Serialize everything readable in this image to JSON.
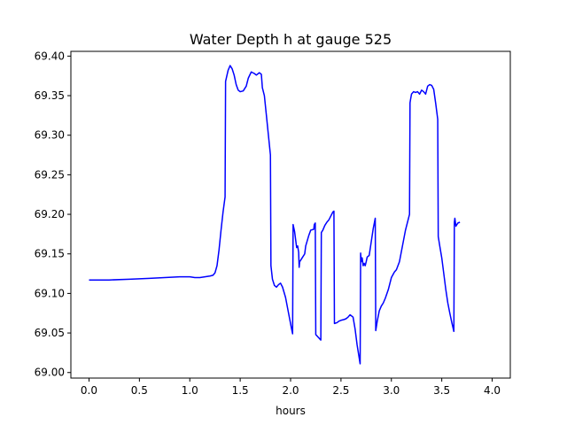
{
  "chart_data": {
    "type": "line",
    "title": "Water Depth h at gauge 525",
    "xlabel": "hours",
    "ylabel": "",
    "xlim": [
      -0.18,
      4.18
    ],
    "ylim": [
      68.993,
      69.406
    ],
    "x_ticks": [
      0.0,
      0.5,
      1.0,
      1.5,
      2.0,
      2.5,
      3.0,
      3.5,
      4.0
    ],
    "x_tick_labels": [
      "0.0",
      "0.5",
      "1.0",
      "1.5",
      "2.0",
      "2.5",
      "3.0",
      "3.5",
      "4.0"
    ],
    "y_ticks": [
      69.0,
      69.05,
      69.1,
      69.15,
      69.2,
      69.25,
      69.3,
      69.35,
      69.4
    ],
    "y_tick_labels": [
      "69.00",
      "69.05",
      "69.10",
      "69.15",
      "69.20",
      "69.25",
      "69.30",
      "69.35",
      "69.40"
    ],
    "grid": false,
    "legend": "none",
    "series": [
      {
        "color": "#0000ff",
        "points": [
          [
            0.0,
            69.117
          ],
          [
            0.2,
            69.117
          ],
          [
            0.4,
            69.118
          ],
          [
            0.6,
            69.119
          ],
          [
            0.75,
            69.12
          ],
          [
            0.9,
            69.121
          ],
          [
            1.0,
            69.121
          ],
          [
            1.05,
            69.12
          ],
          [
            1.1,
            69.12
          ],
          [
            1.15,
            69.121
          ],
          [
            1.2,
            69.122
          ],
          [
            1.23,
            69.123
          ],
          [
            1.25,
            69.126
          ],
          [
            1.27,
            69.135
          ],
          [
            1.29,
            69.155
          ],
          [
            1.31,
            69.18
          ],
          [
            1.33,
            69.203
          ],
          [
            1.35,
            69.222
          ],
          [
            1.355,
            69.368
          ],
          [
            1.38,
            69.382
          ],
          [
            1.4,
            69.388
          ],
          [
            1.42,
            69.384
          ],
          [
            1.44,
            69.376
          ],
          [
            1.46,
            69.364
          ],
          [
            1.48,
            69.357
          ],
          [
            1.5,
            69.355
          ],
          [
            1.53,
            69.356
          ],
          [
            1.56,
            69.362
          ],
          [
            1.58,
            69.372
          ],
          [
            1.61,
            69.38
          ],
          [
            1.64,
            69.378
          ],
          [
            1.66,
            69.376
          ],
          [
            1.69,
            69.379
          ],
          [
            1.71,
            69.377
          ],
          [
            1.72,
            69.36
          ],
          [
            1.74,
            69.35
          ],
          [
            1.76,
            69.325
          ],
          [
            1.78,
            69.3
          ],
          [
            1.8,
            69.275
          ],
          [
            1.805,
            69.135
          ],
          [
            1.82,
            69.118
          ],
          [
            1.84,
            69.11
          ],
          [
            1.86,
            69.108
          ],
          [
            1.88,
            69.111
          ],
          [
            1.9,
            69.113
          ],
          [
            1.92,
            69.108
          ],
          [
            1.95,
            69.095
          ],
          [
            1.98,
            69.075
          ],
          [
            2.01,
            69.055
          ],
          [
            2.02,
            69.049
          ],
          [
            2.025,
            69.187
          ],
          [
            2.04,
            69.178
          ],
          [
            2.06,
            69.158
          ],
          [
            2.07,
            69.16
          ],
          [
            2.08,
            69.152
          ],
          [
            2.085,
            69.133
          ],
          [
            2.09,
            69.14
          ],
          [
            2.12,
            69.146
          ],
          [
            2.14,
            69.15
          ],
          [
            2.15,
            69.16
          ],
          [
            2.18,
            69.173
          ],
          [
            2.2,
            69.18
          ],
          [
            2.23,
            69.181
          ],
          [
            2.235,
            69.187
          ],
          [
            2.245,
            69.189
          ],
          [
            2.25,
            69.048
          ],
          [
            2.3,
            69.041
          ],
          [
            2.305,
            69.177
          ],
          [
            2.32,
            69.18
          ],
          [
            2.34,
            69.186
          ],
          [
            2.36,
            69.19
          ],
          [
            2.38,
            69.193
          ],
          [
            2.4,
            69.198
          ],
          [
            2.42,
            69.203
          ],
          [
            2.43,
            69.204
          ],
          [
            2.435,
            69.062
          ],
          [
            2.46,
            69.063
          ],
          [
            2.48,
            69.065
          ],
          [
            2.5,
            69.066
          ],
          [
            2.53,
            69.067
          ],
          [
            2.55,
            69.068
          ],
          [
            2.57,
            69.07
          ],
          [
            2.59,
            69.073
          ],
          [
            2.62,
            69.07
          ],
          [
            2.64,
            69.055
          ],
          [
            2.66,
            69.035
          ],
          [
            2.69,
            69.011
          ],
          [
            2.695,
            69.151
          ],
          [
            2.7,
            69.14
          ],
          [
            2.71,
            69.145
          ],
          [
            2.72,
            69.135
          ],
          [
            2.73,
            69.138
          ],
          [
            2.74,
            69.135
          ],
          [
            2.75,
            69.14
          ],
          [
            2.76,
            69.146
          ],
          [
            2.78,
            69.148
          ],
          [
            2.8,
            69.165
          ],
          [
            2.82,
            69.182
          ],
          [
            2.84,
            69.195
          ],
          [
            2.845,
            69.053
          ],
          [
            2.86,
            69.065
          ],
          [
            2.88,
            69.078
          ],
          [
            2.9,
            69.084
          ],
          [
            2.92,
            69.088
          ],
          [
            2.94,
            69.094
          ],
          [
            2.97,
            69.105
          ],
          [
            3.0,
            69.12
          ],
          [
            3.03,
            69.127
          ],
          [
            3.05,
            69.13
          ],
          [
            3.08,
            69.14
          ],
          [
            3.11,
            69.16
          ],
          [
            3.14,
            69.18
          ],
          [
            3.17,
            69.195
          ],
          [
            3.18,
            69.2
          ],
          [
            3.185,
            69.341
          ],
          [
            3.19,
            69.345
          ],
          [
            3.2,
            69.352
          ],
          [
            3.22,
            69.355
          ],
          [
            3.24,
            69.354
          ],
          [
            3.26,
            69.355
          ],
          [
            3.28,
            69.352
          ],
          [
            3.3,
            69.357
          ],
          [
            3.32,
            69.355
          ],
          [
            3.34,
            69.352
          ],
          [
            3.36,
            69.362
          ],
          [
            3.38,
            69.364
          ],
          [
            3.4,
            69.363
          ],
          [
            3.42,
            69.358
          ],
          [
            3.44,
            69.34
          ],
          [
            3.46,
            69.32
          ],
          [
            3.465,
            69.172
          ],
          [
            3.48,
            69.16
          ],
          [
            3.5,
            69.145
          ],
          [
            3.52,
            69.125
          ],
          [
            3.54,
            69.105
          ],
          [
            3.56,
            69.088
          ],
          [
            3.58,
            69.075
          ],
          [
            3.6,
            69.063
          ],
          [
            3.62,
            69.052
          ],
          [
            3.625,
            69.19
          ],
          [
            3.63,
            69.195
          ],
          [
            3.64,
            69.185
          ],
          [
            3.66,
            69.189
          ],
          [
            3.68,
            69.19
          ]
        ]
      }
    ]
  }
}
